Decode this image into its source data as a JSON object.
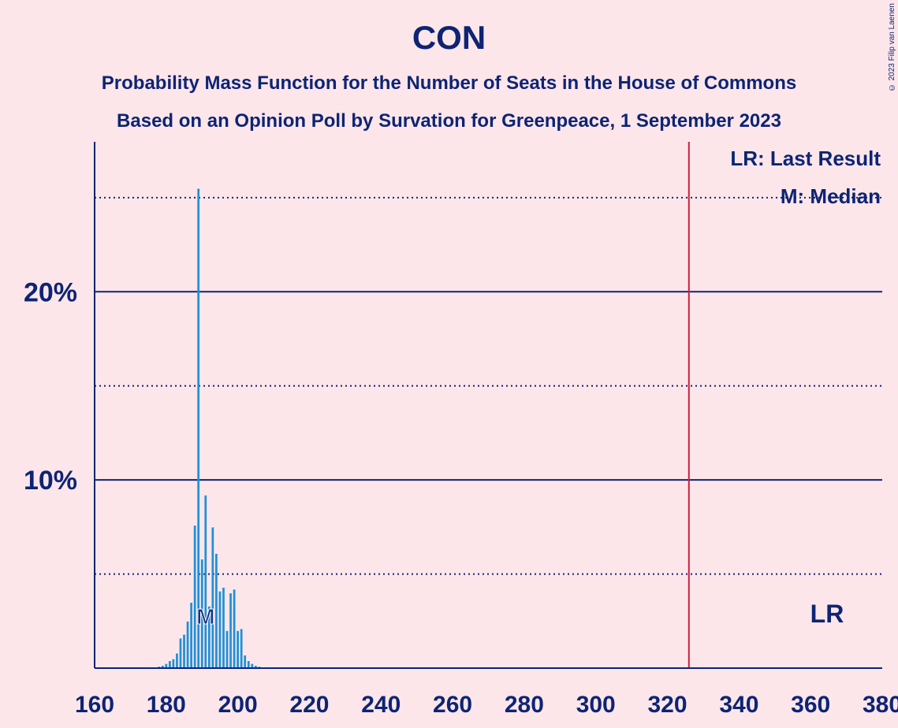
{
  "title": "CON",
  "subtitle": "Probability Mass Function for the Number of Seats in the House of Commons",
  "subtitle2": "Based on an Opinion Poll by Survation for Greenpeace, 1 September 2023",
  "copyright": "© 2023 Filip van Laenen",
  "legend": {
    "last_result": "LR: Last Result",
    "median": "M: Median"
  },
  "colors": {
    "background": "#FDE6EA",
    "text": "#0D2474",
    "bar": "#1E90D5",
    "last_result_line": "#CC1E3C"
  },
  "chart_data": {
    "type": "bar",
    "xlim": [
      160,
      380
    ],
    "ylim": [
      0,
      27.8
    ],
    "x_ticks": [
      160,
      180,
      200,
      220,
      240,
      260,
      280,
      300,
      320,
      340,
      360,
      380
    ],
    "y_ticks_major": [
      {
        "value": 10,
        "label": "10%"
      },
      {
        "value": 20,
        "label": "20%"
      }
    ],
    "y_ticks_minor": [
      5,
      15,
      25
    ],
    "last_result": {
      "x": 326,
      "label": "LR"
    },
    "median": {
      "x": 191,
      "label": "M"
    },
    "x": [
      175,
      176,
      177,
      178,
      179,
      180,
      181,
      182,
      183,
      184,
      185,
      186,
      187,
      188,
      189,
      190,
      191,
      192,
      193,
      194,
      195,
      196,
      197,
      198,
      199,
      200,
      201,
      202,
      203,
      204,
      205,
      206,
      207,
      208
    ],
    "values": [
      0.02,
      0.03,
      0.05,
      0.1,
      0.15,
      0.25,
      0.4,
      0.5,
      0.8,
      1.6,
      1.8,
      2.5,
      3.5,
      7.6,
      25.5,
      5.8,
      9.2,
      3.3,
      7.5,
      6.1,
      4.1,
      4.3,
      2.0,
      4.0,
      4.2,
      2.0,
      2.1,
      0.7,
      0.4,
      0.25,
      0.15,
      0.1,
      0.05,
      0.02
    ]
  }
}
